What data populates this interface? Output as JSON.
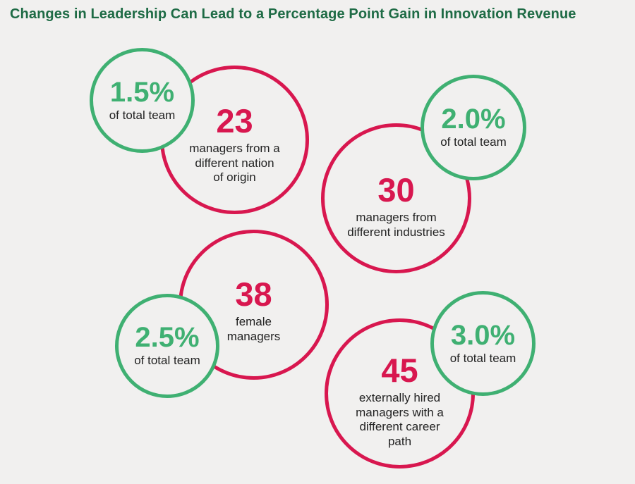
{
  "title": "Changes in Leadership Can Lead to a Percentage Point Gain in Innovation Revenue",
  "colors": {
    "title": "#1e6b45",
    "red": "#d8174f",
    "green": "#3fb072",
    "background": "#f1f0ef"
  },
  "stats": [
    {
      "count": "23",
      "description_lines": [
        "managers from a",
        "different nation",
        "of origin"
      ],
      "percent": "1.5%",
      "percent_label": "of total team"
    },
    {
      "count": "30",
      "description_lines": [
        "managers from",
        "different industries"
      ],
      "percent": "2.0%",
      "percent_label": "of total team"
    },
    {
      "count": "38",
      "description_lines": [
        "female",
        "managers"
      ],
      "percent": "2.5%",
      "percent_label": "of total team"
    },
    {
      "count": "45",
      "description_lines": [
        "externally hired",
        "managers with a",
        "different career",
        "path"
      ],
      "percent": "3.0%",
      "percent_label": "of total team"
    }
  ]
}
